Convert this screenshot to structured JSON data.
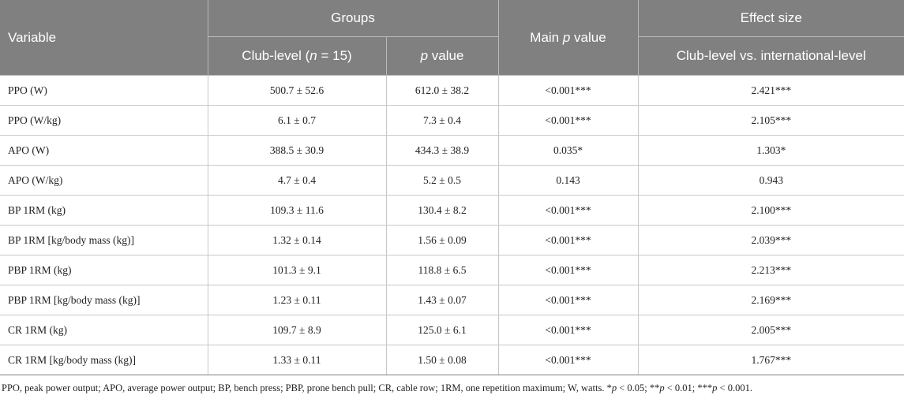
{
  "header": {
    "variable": "Variable",
    "groups": "Groups",
    "main_p_prefix": "Main ",
    "main_p_italic": "p",
    "main_p_suffix": " value",
    "effect_size": "Effect size",
    "club_prefix": "Club-level (",
    "club_n": "n",
    "club_suffix": " = 15)",
    "p_italic": "p",
    "p_suffix": " value",
    "comparison": "Club-level vs. international-level"
  },
  "rows": [
    {
      "variable": "PPO (W)",
      "club": "500.7 ± 52.6",
      "p": "612.0 ± 38.2",
      "main_p": "<0.001***",
      "effect": "2.421***"
    },
    {
      "variable": "PPO (W/kg)",
      "club": "6.1 ± 0.7",
      "p": "7.3 ± 0.4",
      "main_p": "<0.001***",
      "effect": "2.105***"
    },
    {
      "variable": "APO (W)",
      "club": "388.5 ± 30.9",
      "p": "434.3 ± 38.9",
      "main_p": "0.035*",
      "effect": "1.303*"
    },
    {
      "variable": "APO (W/kg)",
      "club": "4.7 ± 0.4",
      "p": "5.2 ± 0.5",
      "main_p": "0.143",
      "effect": "0.943"
    },
    {
      "variable": "BP 1RM (kg)",
      "club": "109.3 ± 11.6",
      "p": "130.4 ± 8.2",
      "main_p": "<0.001***",
      "effect": "2.100***"
    },
    {
      "variable": "BP 1RM [kg/body mass (kg)]",
      "club": "1.32 ± 0.14",
      "p": "1.56 ± 0.09",
      "main_p": "<0.001***",
      "effect": "2.039***"
    },
    {
      "variable": "PBP 1RM (kg)",
      "club": "101.3 ± 9.1",
      "p": "118.8 ± 6.5",
      "main_p": "<0.001***",
      "effect": "2.213***"
    },
    {
      "variable": "PBP 1RM [kg/body mass (kg)]",
      "club": "1.23 ± 0.11",
      "p": "1.43 ± 0.07",
      "main_p": "<0.001***",
      "effect": "2.169***"
    },
    {
      "variable": "CR 1RM (kg)",
      "club": "109.7 ± 8.9",
      "p": "125.0 ± 6.1",
      "main_p": "<0.001***",
      "effect": "2.005***"
    },
    {
      "variable": "CR 1RM [kg/body mass (kg)]",
      "club": "1.33 ± 0.11",
      "p": "1.50 ± 0.08",
      "main_p": "<0.001***",
      "effect": "1.767***"
    }
  ],
  "footnote": {
    "abbrev": "PPO, peak power output; APO, average power output; BP, bench press; PBP, prone bench pull; CR, cable row; 1RM, one repetition maximum; W, watts. *",
    "p1": "p",
    "t1": " < 0.05; **",
    "p2": "p",
    "t2": " < 0.01; ***",
    "p3": "p",
    "t3": " < 0.001."
  }
}
